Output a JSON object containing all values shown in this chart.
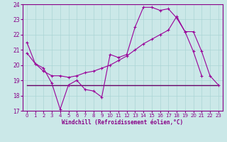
{
  "xlabel": "Windchill (Refroidissement éolien,°C)",
  "bg_color": "#cbe8e8",
  "line_color1": "#990099",
  "line_color2": "#990099",
  "line_color3": "#660066",
  "grid_color": "#aad4d4",
  "xlim": [
    -0.5,
    23.5
  ],
  "ylim": [
    17,
    24
  ],
  "yticks": [
    17,
    18,
    19,
    20,
    21,
    22,
    23,
    24
  ],
  "xticks": [
    0,
    1,
    2,
    3,
    4,
    5,
    6,
    7,
    8,
    9,
    10,
    11,
    12,
    13,
    14,
    15,
    16,
    17,
    18,
    19,
    20,
    21,
    22,
    23
  ],
  "s1_x": [
    0,
    1,
    2,
    3,
    4,
    5,
    6,
    7,
    8,
    9,
    10,
    11,
    12,
    13,
    14,
    15,
    16,
    17,
    18,
    19,
    20,
    21
  ],
  "s1_y": [
    21.5,
    20.1,
    19.8,
    18.8,
    17.1,
    18.7,
    19.0,
    18.4,
    18.3,
    17.9,
    20.7,
    20.5,
    20.7,
    22.5,
    23.8,
    23.8,
    23.6,
    23.7,
    23.1,
    22.2,
    20.9,
    19.3
  ],
  "s2_x": [
    0,
    1,
    2,
    3,
    4,
    5,
    6,
    7,
    8,
    9,
    10,
    11,
    12,
    13,
    14,
    15,
    16,
    17,
    18,
    19,
    20,
    21,
    22,
    23
  ],
  "s2_y": [
    20.8,
    20.1,
    19.6,
    19.3,
    19.3,
    19.2,
    19.3,
    19.5,
    19.6,
    19.8,
    20.0,
    20.3,
    20.6,
    21.0,
    21.4,
    21.7,
    22.0,
    22.3,
    23.2,
    22.2,
    22.2,
    20.9,
    19.3,
    18.7
  ],
  "s3_x": [
    0,
    1,
    2,
    3,
    4,
    5,
    6,
    7,
    8,
    9,
    10,
    11,
    12,
    13,
    14,
    15,
    16,
    17,
    18,
    19,
    20,
    21,
    22,
    23
  ],
  "s3_y": [
    18.7,
    18.7,
    18.7,
    18.7,
    18.7,
    18.7,
    18.7,
    18.7,
    18.7,
    18.7,
    18.7,
    18.7,
    18.7,
    18.7,
    18.7,
    18.7,
    18.7,
    18.7,
    18.7,
    18.7,
    18.7,
    18.7,
    18.7,
    18.7
  ]
}
